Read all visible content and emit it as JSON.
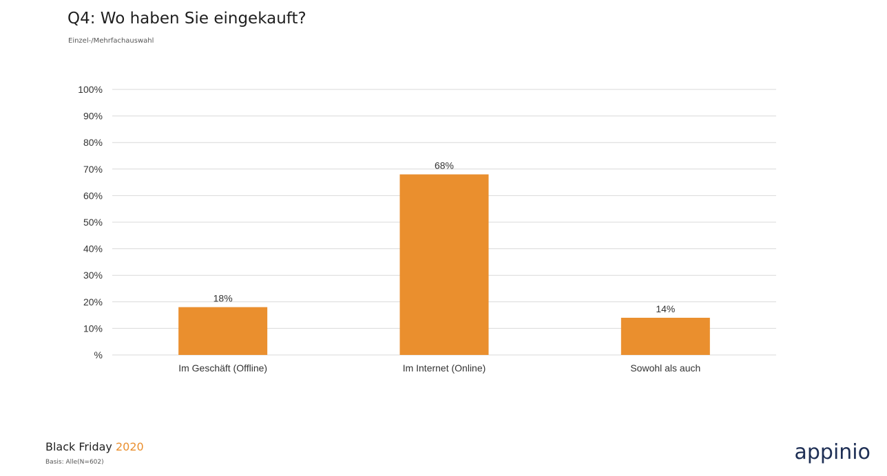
{
  "header": {
    "title": "Q4: Wo haben Sie eingekauft?",
    "subtitle": "Einzel-/Mehrfachauswahl"
  },
  "footer": {
    "brand_text": "Black Friday",
    "brand_year": "2020",
    "basis": "Basis: Alle(N=602)",
    "logo_text": "appinio"
  },
  "colors": {
    "bar": "#ea8f2e",
    "grid": "#d9d9d9",
    "year_accent": "#ea8f2e",
    "logo": "#1e2f55"
  },
  "chart_data": {
    "type": "bar",
    "categories": [
      "Im Geschäft (Offline)",
      "Im Internet (Online)",
      "Sowohl als auch"
    ],
    "values": [
      18,
      68,
      14
    ],
    "value_labels": [
      "18%",
      "68%",
      "14%"
    ],
    "y_ticks": [
      "%",
      "10%",
      "20%",
      "30%",
      "40%",
      "50%",
      "60%",
      "70%",
      "80%",
      "90%",
      "100%"
    ],
    "ylim": [
      0,
      100
    ],
    "grid": true,
    "legend": "none"
  }
}
